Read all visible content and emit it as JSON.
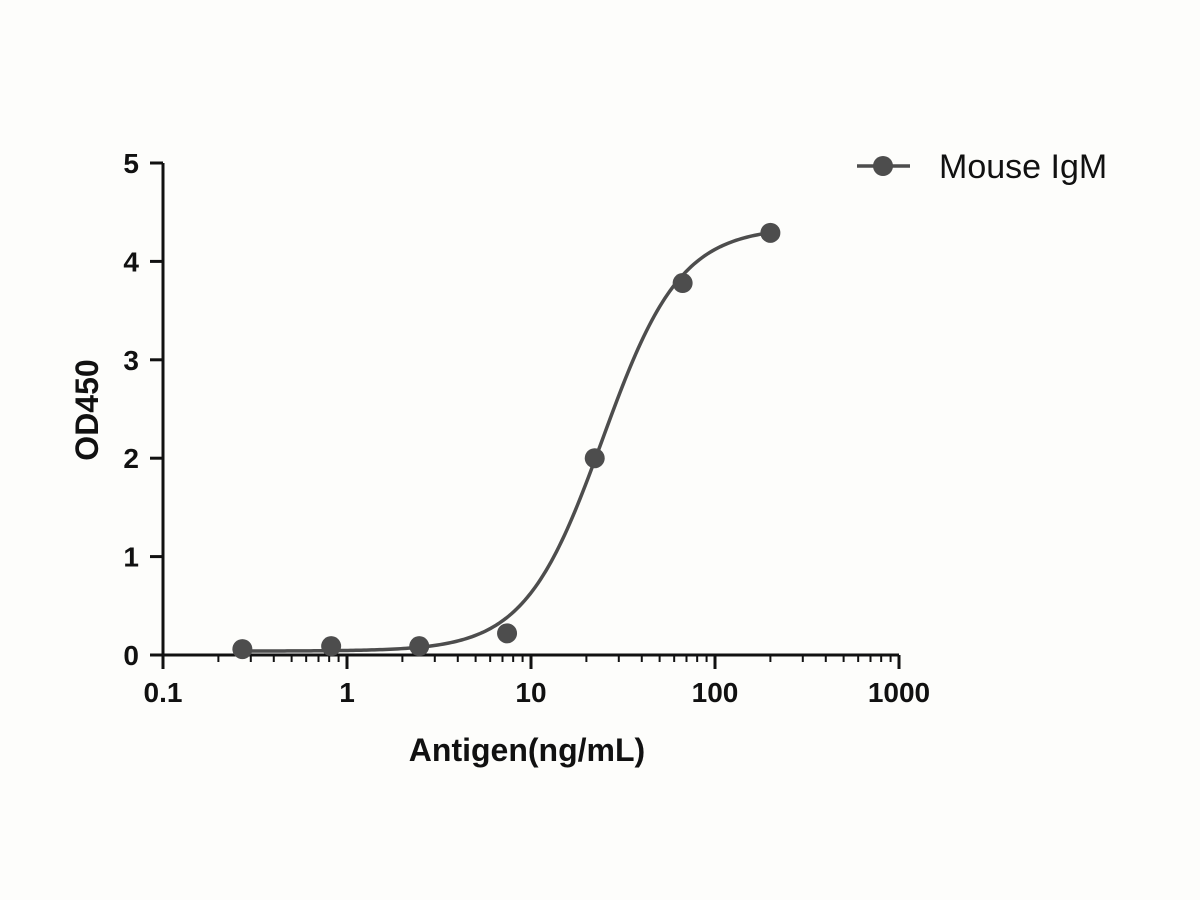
{
  "chart_data": {
    "type": "scatter",
    "title": "",
    "xlabel": "Antigen(ng/mL)",
    "ylabel": "OD450",
    "x_scale": "log",
    "xlim": [
      0.1,
      1000
    ],
    "ylim": [
      0,
      5
    ],
    "x_ticks": [
      "0.1",
      "1",
      "10",
      "100",
      "1000"
    ],
    "y_ticks": [
      "0",
      "1",
      "2",
      "3",
      "4",
      "5"
    ],
    "grid": false,
    "legend_position": "top-right",
    "series": [
      {
        "name": "Mouse IgM",
        "color": "#4d4d4d",
        "marker": "circle",
        "fit": "four-parameter logistic curve",
        "points": [
          {
            "x": 0.27,
            "y": 0.06
          },
          {
            "x": 0.82,
            "y": 0.09
          },
          {
            "x": 2.47,
            "y": 0.09
          },
          {
            "x": 7.41,
            "y": 0.22
          },
          {
            "x": 22.2,
            "y": 2.0
          },
          {
            "x": 66.7,
            "y": 3.78
          },
          {
            "x": 200,
            "y": 4.29
          }
        ]
      }
    ]
  }
}
